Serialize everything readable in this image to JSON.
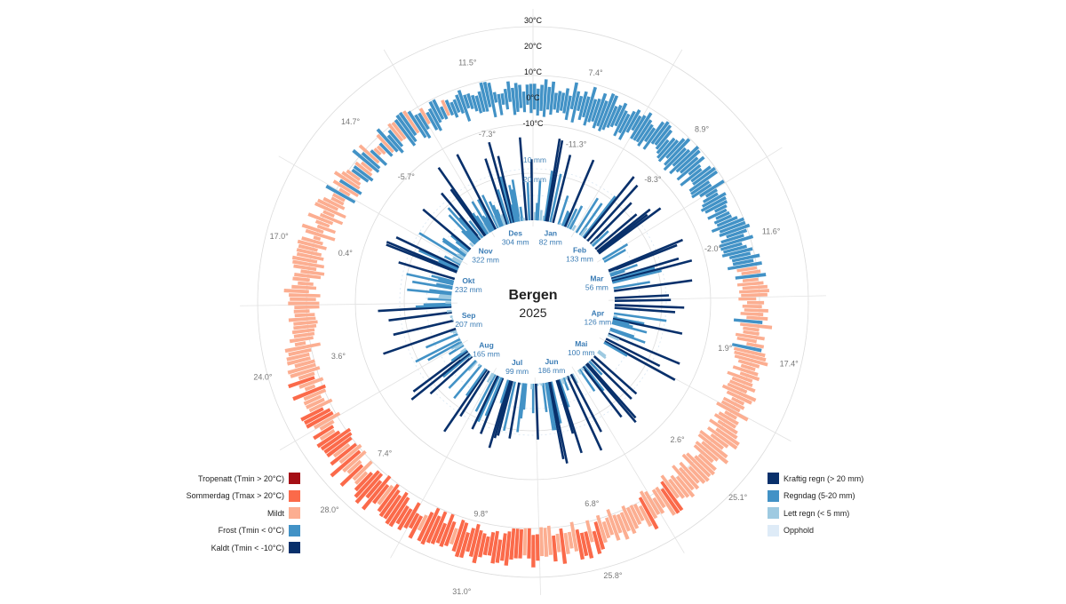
{
  "chart_data": {
    "type": "radial-climate",
    "title": "Bergen",
    "subtitle": "2025",
    "temperature_axis": {
      "ticks": [
        "-10°C",
        "0°C",
        "10°C",
        "20°C",
        "30°C"
      ],
      "tick_values": [
        -10,
        0,
        10,
        20,
        30
      ]
    },
    "months": [
      {
        "name": "Jan",
        "precip": "82 mm"
      },
      {
        "name": "Feb",
        "precip": "133 mm"
      },
      {
        "name": "Mar",
        "precip": "56 mm"
      },
      {
        "name": "Apr",
        "precip": "126 mm"
      },
      {
        "name": "Mai",
        "precip": "100 mm"
      },
      {
        "name": "Jun",
        "precip": "186 mm"
      },
      {
        "name": "Jul",
        "precip": "99 mm"
      },
      {
        "name": "Aug",
        "precip": "165 mm"
      },
      {
        "name": "Sep",
        "precip": "207 mm"
      },
      {
        "name": "Okt",
        "precip": "232 mm"
      },
      {
        "name": "Nov",
        "precip": "322 mm"
      },
      {
        "name": "Des",
        "precip": "304 mm"
      }
    ],
    "monthly_temperature_extremes": [
      {
        "month": "Jan",
        "max": "7.4°",
        "min": "-11.3°"
      },
      {
        "month": "Feb",
        "max": "8.9°",
        "min": "-8.3°"
      },
      {
        "month": "Mar",
        "max": "11.6°",
        "min": "-2.0°"
      },
      {
        "month": "Apr",
        "max": "17.4°",
        "min": "1.9°"
      },
      {
        "month": "Mai",
        "max": "25.1°",
        "min": "2.6°"
      },
      {
        "month": "Jun",
        "max": "25.8°",
        "min": "6.8°"
      },
      {
        "month": "Jul",
        "max": "31.0°",
        "min": "9.8°"
      },
      {
        "month": "Aug",
        "max": "28.0°",
        "min": "7.4°"
      },
      {
        "month": "Sep",
        "max": "24.0°",
        "min": "3.6°"
      },
      {
        "month": "Okt",
        "max": "17.0°",
        "min": "0.4°"
      },
      {
        "month": "Nov",
        "max": "14.7°",
        "min": "-5.7°"
      },
      {
        "month": "Des",
        "max": "11.5°",
        "min": "-7.3°"
      }
    ],
    "precip_ring_labels": [
      "10 mm",
      "20 mm"
    ],
    "temperature_legend": [
      {
        "label": "Tropenatt (Tmin > 20°C)",
        "color": "#a50f15"
      },
      {
        "label": "Sommerdag (Tmax > 20°C)",
        "color": "#fb6a4a"
      },
      {
        "label": "Mildt",
        "color": "#fcae91"
      },
      {
        "label": "Frost (Tmin < 0°C)",
        "color": "#4292c6"
      },
      {
        "label": "Kaldt (Tmin < -10°C)",
        "color": "#08306b"
      }
    ],
    "precip_legend": [
      {
        "label": "Kraftig regn (> 20 mm)",
        "color": "#08306b"
      },
      {
        "label": "Regndag (5-20 mm)",
        "color": "#4292c6"
      },
      {
        "label": "Lett regn (< 5 mm)",
        "color": "#9ecae1"
      },
      {
        "label": "Opphold",
        "color": "#deebf7"
      }
    ],
    "grid": true
  }
}
